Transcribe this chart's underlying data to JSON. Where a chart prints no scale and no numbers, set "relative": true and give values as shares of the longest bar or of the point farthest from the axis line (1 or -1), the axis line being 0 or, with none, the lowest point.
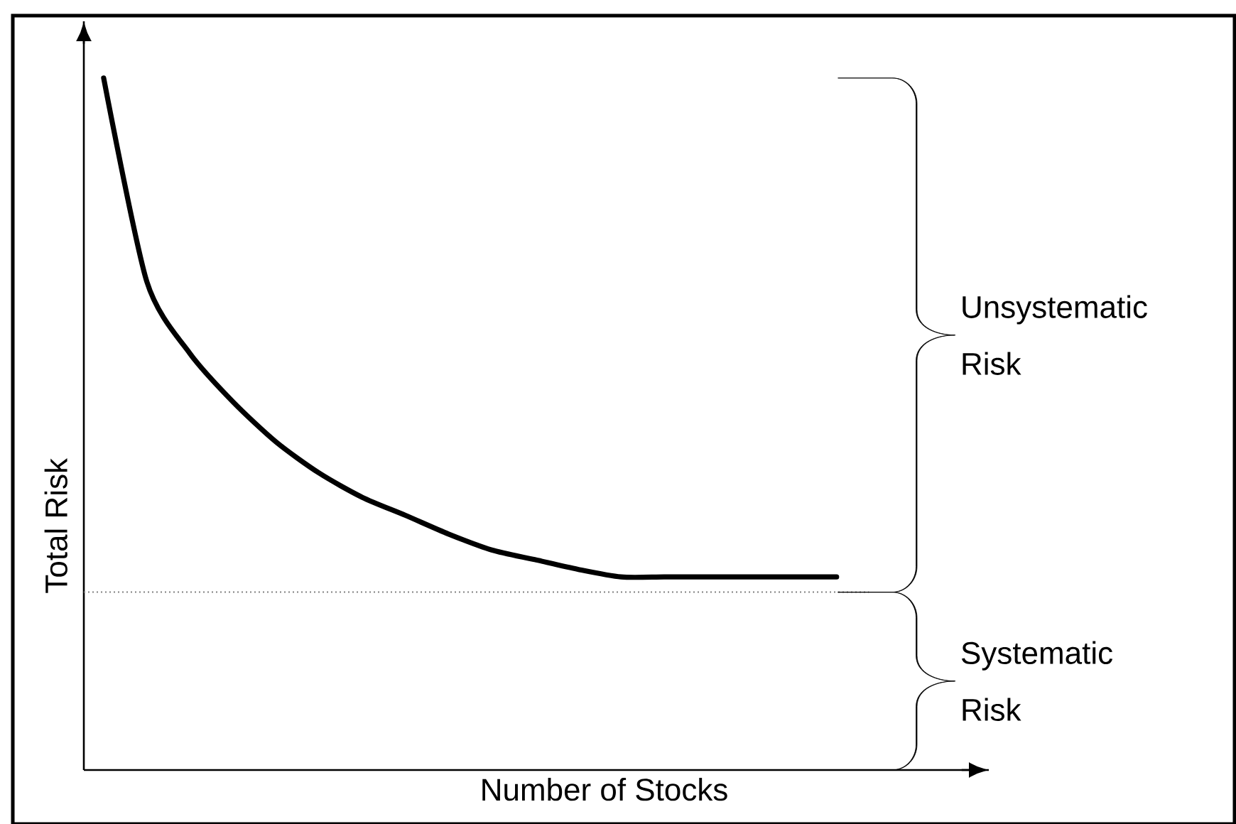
{
  "chart_data": {
    "type": "line",
    "relative": true,
    "xlabel": "Number of Stocks",
    "ylabel": "Total Risk",
    "categories": [
      null,
      null,
      null,
      null,
      null,
      null,
      null,
      null,
      null,
      null,
      null,
      null,
      null,
      null,
      null,
      null,
      null,
      null
    ],
    "values": [
      1,
      0.706,
      0.602,
      0.532,
      0.474,
      0.429,
      0.394,
      0.368,
      0.341,
      0.318,
      0.304,
      0.29,
      0.279,
      0.279,
      0.279,
      0.279,
      0.279,
      0.279
    ],
    "color": "#000000",
    "ref_lines": [
      {
        "axis": "y",
        "value": 0.257,
        "color": "#808080",
        "line_style": "dotted"
      }
    ],
    "annotations": [
      "Unsystematic Risk",
      "Systematic Risk"
    ]
  }
}
